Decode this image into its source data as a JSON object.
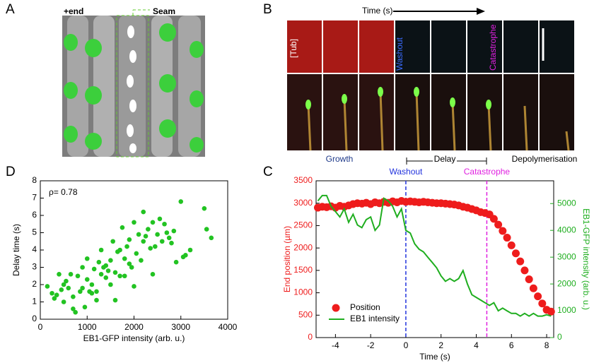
{
  "panel_a": {
    "letter": "A",
    "plus_end": "+end",
    "seam": "Seam"
  },
  "panel_b": {
    "letter": "B",
    "time_label": "Time (s)",
    "tub_label": "[Tub]",
    "washout_label": "Washout",
    "catastrophe_label": "Catastrophe",
    "growth": "Growth",
    "delay": "Delay",
    "depolymerisation": "Depolymerisation"
  },
  "chart_data": [
    {
      "type": "line",
      "panel": "C",
      "xlabel": "Time (s)",
      "ylabel": "End position (µm)",
      "y2label": "EB1-GFP intensity (arb. u.)",
      "x": [
        -5,
        -4.75,
        -4.5,
        -4.25,
        -4,
        -3.75,
        -3.5,
        -3.25,
        -3,
        -2.75,
        -2.5,
        -2.25,
        -2,
        -1.75,
        -1.5,
        -1.25,
        -1,
        -0.75,
        -0.5,
        -0.25,
        0,
        0.25,
        0.5,
        0.75,
        1,
        1.25,
        1.5,
        1.75,
        2,
        2.25,
        2.5,
        2.75,
        3,
        3.25,
        3.5,
        3.75,
        4,
        4.25,
        4.5,
        4.75,
        5,
        5.25,
        5.5,
        5.75,
        6,
        6.25,
        6.5,
        6.75,
        7,
        7.25,
        7.5,
        7.75,
        8,
        8.25
      ],
      "series": [
        {
          "name": "Position",
          "color": "#ee1c1c",
          "style": "markers",
          "values": [
            2900,
            2920,
            2910,
            2930,
            2900,
            2940,
            2920,
            2950,
            2980,
            3000,
            2990,
            3010,
            2980,
            3020,
            3000,
            3030,
            3010,
            3040,
            3020,
            3050,
            3030,
            3040,
            3030,
            3020,
            3030,
            3020,
            3010,
            3000,
            3000,
            2990,
            2980,
            2970,
            2950,
            2920,
            2900,
            2870,
            2840,
            2800,
            2780,
            2750,
            2650,
            2520,
            2380,
            2230,
            2060,
            1880,
            1700,
            1500,
            1300,
            1100,
            920,
            760,
            620,
            580
          ]
        },
        {
          "name": "EB1 intensity",
          "color": "#1fae1f",
          "style": "line",
          "axis": "y2",
          "values": [
            5100,
            5300,
            5300,
            4900,
            4700,
            4500,
            4800,
            4300,
            4600,
            4200,
            4100,
            4400,
            4500,
            4000,
            4200,
            5200,
            5100,
            4900,
            4500,
            4800,
            4000,
            3900,
            3500,
            3300,
            3200,
            3000,
            2800,
            2600,
            2300,
            2100,
            2200,
            2100,
            2200,
            2500,
            2000,
            1600,
            1500,
            1400,
            1300,
            1200,
            1300,
            1000,
            1100,
            1000,
            900,
            900,
            800,
            900,
            800,
            900,
            800,
            800,
            850,
            800
          ]
        }
      ],
      "xlim": [
        -5.1,
        8.4
      ],
      "xticks": [
        -4,
        -2,
        0,
        2,
        4,
        6,
        8
      ],
      "ylim": [
        0,
        3500
      ],
      "yticks": [
        0,
        500,
        1000,
        1500,
        2000,
        2500,
        3000,
        3500
      ],
      "y2lim": [
        0,
        5850
      ],
      "y2ticks": [
        0,
        1000,
        2000,
        3000,
        4000,
        5000
      ],
      "legend": "lower left",
      "annotations": [
        {
          "text": "Washout",
          "x": 0,
          "color": "#2233dd"
        },
        {
          "text": "Catastrophe",
          "x": 4.6,
          "color": "#e020e0"
        }
      ]
    },
    {
      "type": "scatter",
      "panel": "D",
      "xlabel": "EB1-GFP intensity (arb. u.)",
      "ylabel": "Delay time (s)",
      "annotation": "ρ= 0.78",
      "color": "#22c322",
      "x": [
        150,
        250,
        300,
        350,
        400,
        450,
        500,
        500,
        550,
        600,
        650,
        700,
        750,
        800,
        850,
        900,
        950,
        1000,
        1000,
        1050,
        1100,
        1150,
        1200,
        1250,
        1300,
        1300,
        1350,
        1400,
        1450,
        1500,
        1500,
        1550,
        1600,
        1650,
        1700,
        1700,
        1750,
        1800,
        1850,
        1900,
        1900,
        1950,
        2000,
        2050,
        2100,
        2150,
        2200,
        2200,
        2250,
        2300,
        2350,
        2400,
        2450,
        2500,
        2550,
        2600,
        2650,
        2700,
        2750,
        2800,
        2850,
        2900,
        3000,
        3050,
        3100,
        3200,
        3500,
        3550,
        3650,
        700,
        1200,
        1600,
        2000,
        2400,
        1400,
        1800,
        900,
        1100
      ],
      "values": [
        1.9,
        1.5,
        1.2,
        1.4,
        2.6,
        1.7,
        2.0,
        1.0,
        2.2,
        1.8,
        2.6,
        0.6,
        0.4,
        2.5,
        1.6,
        3.0,
        0.7,
        2.3,
        3.5,
        1.6,
        2.0,
        2.9,
        1.1,
        3.3,
        2.6,
        4.0,
        3.0,
        2.4,
        2.8,
        3.4,
        2.0,
        4.5,
        2.7,
        3.9,
        4.0,
        2.5,
        5.3,
        3.5,
        4.2,
        4.6,
        3.2,
        3.0,
        5.6,
        3.8,
        4.9,
        3.4,
        4.5,
        6.2,
        4.8,
        5.2,
        4.1,
        5.6,
        4.2,
        4.9,
        5.8,
        4.5,
        5.5,
        5.0,
        4.7,
        4.4,
        5.1,
        3.3,
        6.8,
        3.6,
        3.7,
        4.0,
        6.4,
        5.2,
        4.7,
        1.3,
        1.6,
        1.1,
        1.9,
        2.6,
        3.1,
        2.5,
        1.8,
        1.5
      ],
      "xlim": [
        0,
        4000
      ],
      "xticks": [
        0,
        1000,
        2000,
        3000,
        4000
      ],
      "ylim": [
        0,
        8
      ],
      "yticks": [
        0,
        1,
        2,
        3,
        4,
        5,
        6,
        7,
        8
      ]
    }
  ]
}
